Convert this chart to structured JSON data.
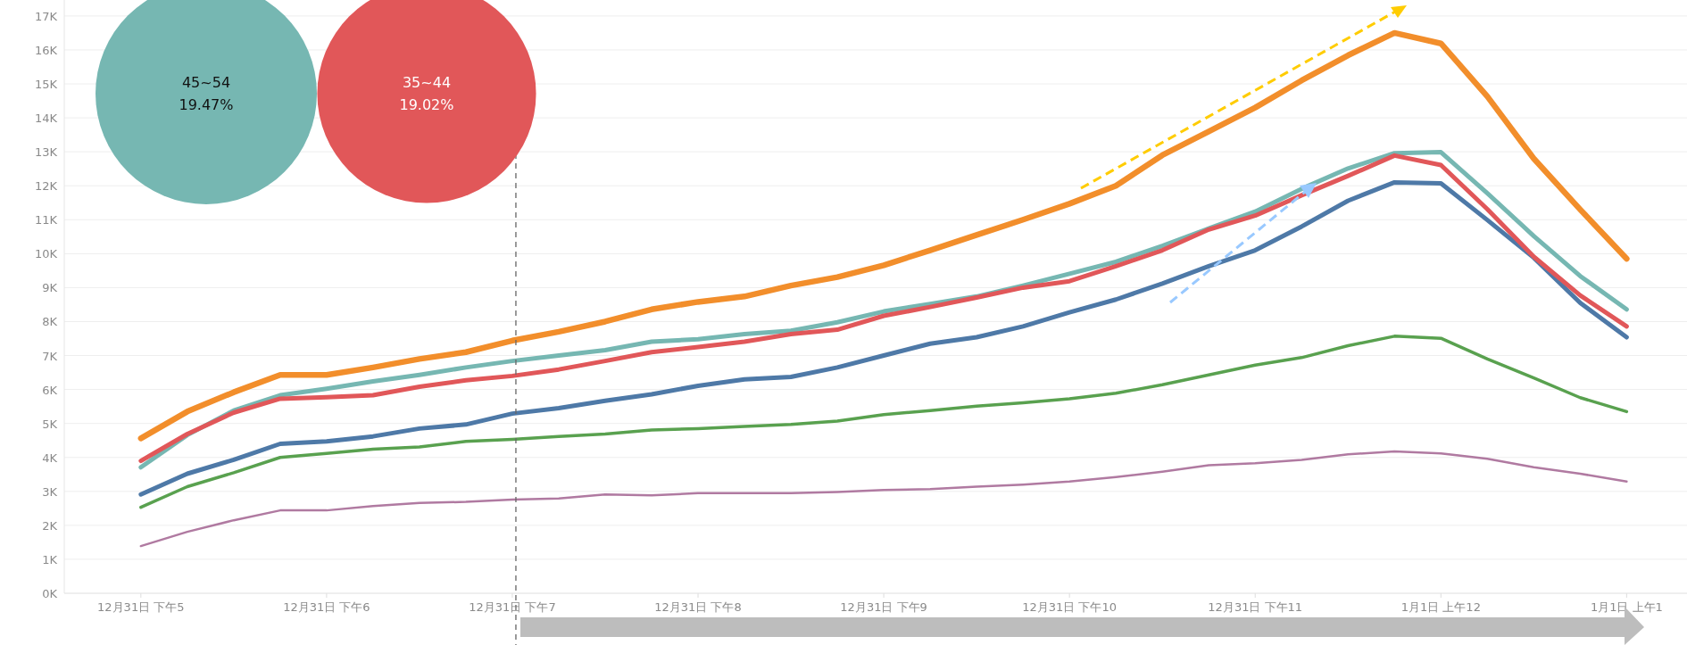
{
  "chart_data": [
    {
      "type": "line",
      "categories": [
        "12月31日 下午5",
        null,
        null,
        null,
        "12月31日 下午6",
        null,
        null,
        null,
        "12月31日 下午7",
        null,
        null,
        null,
        "12月31日 下午8",
        null,
        null,
        null,
        "12月31日 下午9",
        null,
        null,
        null,
        "12月31日 下午10",
        null,
        null,
        null,
        "12月31日 下午11",
        null,
        null,
        null,
        "1月1日 上午12",
        null,
        null,
        null,
        "1月1日 上午1"
      ],
      "series": [
        {
          "color": "#59a14f",
          "values": [
            2530,
            3140,
            3550,
            4000,
            4120,
            4240,
            4310,
            4470,
            4530,
            4620,
            4690,
            4810,
            4850,
            4910,
            4970,
            5070,
            5260,
            5380,
            5510,
            5610,
            5730,
            5890,
            6140,
            6430,
            6720,
            6940,
            7290,
            7570,
            7510,
            6900,
            6340,
            5760,
            5350
          ]
        },
        {
          "color": "#b07aa1",
          "values": [
            1390,
            1810,
            2150,
            2440,
            2440,
            2570,
            2660,
            2690,
            2760,
            2790,
            2910,
            2880,
            2950,
            2950,
            2950,
            2980,
            3040,
            3070,
            3140,
            3200,
            3290,
            3420,
            3580,
            3770,
            3830,
            3930,
            4090,
            4180,
            4120,
            3960,
            3710,
            3520,
            3290
          ]
        },
        {
          "color": "#4e79a7",
          "values": [
            2910,
            3520,
            3930,
            4400,
            4470,
            4620,
            4850,
            4970,
            5290,
            5450,
            5670,
            5860,
            6110,
            6300,
            6370,
            6650,
            7000,
            7350,
            7540,
            7860,
            8270,
            8650,
            9120,
            9630,
            10100,
            10800,
            11560,
            12100,
            12070,
            10990,
            9880,
            8550,
            7540
          ]
        },
        {
          "color": "#76b7b2",
          "values": [
            3710,
            4660,
            5380,
            5830,
            6020,
            6240,
            6430,
            6650,
            6840,
            7000,
            7160,
            7410,
            7480,
            7630,
            7730,
            7980,
            8300,
            8520,
            8740,
            9060,
            9410,
            9760,
            10230,
            10740,
            11240,
            11910,
            12510,
            12960,
            12990,
            11780,
            10520,
            9340,
            8360
          ]
        },
        {
          "color": "#e15759",
          "values": [
            3900,
            4690,
            5320,
            5730,
            5770,
            5830,
            6080,
            6270,
            6400,
            6590,
            6840,
            7100,
            7250,
            7410,
            7630,
            7760,
            8170,
            8430,
            8710,
            9000,
            9190,
            9630,
            10100,
            10710,
            11120,
            11720,
            12290,
            12890,
            12610,
            11310,
            9910,
            8770,
            7860
          ]
        },
        {
          "color": "#f28e2b",
          "values": [
            4560,
            5350,
            5920,
            6430,
            6430,
            6650,
            6900,
            7100,
            7440,
            7700,
            8000,
            8360,
            8580,
            8740,
            9060,
            9310,
            9660,
            10100,
            10550,
            11000,
            11470,
            12000,
            12900,
            13600,
            14300,
            15100,
            15840,
            16500,
            16190,
            14630,
            12800,
            11300,
            9850
          ]
        }
      ],
      "ylim": [
        0,
        17470
      ],
      "yticks": [
        {
          "value": 0,
          "label": "0K"
        },
        {
          "value": 1000,
          "label": "1K"
        },
        {
          "value": 2000,
          "label": "2K"
        },
        {
          "value": 3000,
          "label": "3K"
        },
        {
          "value": 4000,
          "label": "4K"
        },
        {
          "value": 5000,
          "label": "5K"
        },
        {
          "value": 6000,
          "label": "6K"
        },
        {
          "value": 7000,
          "label": "7K"
        },
        {
          "value": 8000,
          "label": "8K"
        },
        {
          "value": 9000,
          "label": "9K"
        },
        {
          "value": 10000,
          "label": "10K"
        },
        {
          "value": 11000,
          "label": "11K"
        },
        {
          "value": 12000,
          "label": "12K"
        },
        {
          "value": 13000,
          "label": "13K"
        },
        {
          "value": 14000,
          "label": "14K"
        },
        {
          "value": 15000,
          "label": "15K"
        },
        {
          "value": 16000,
          "label": "16K"
        },
        {
          "value": 17000,
          "label": "17K"
        }
      ],
      "ref_lines": [
        {
          "axis": "x",
          "value": "12月31日 下午7",
          "color": "#666666",
          "line_style": "dashed"
        }
      ],
      "grid": "y",
      "line_style": "solid"
    },
    {
      "type": "other",
      "categories": [
        "45~54",
        "35~44"
      ],
      "values": [
        19.47,
        19.02
      ],
      "colors": [
        "#76b7b2",
        "#e15759"
      ],
      "value_labels": [
        "19.47%",
        "19.02%"
      ]
    }
  ]
}
